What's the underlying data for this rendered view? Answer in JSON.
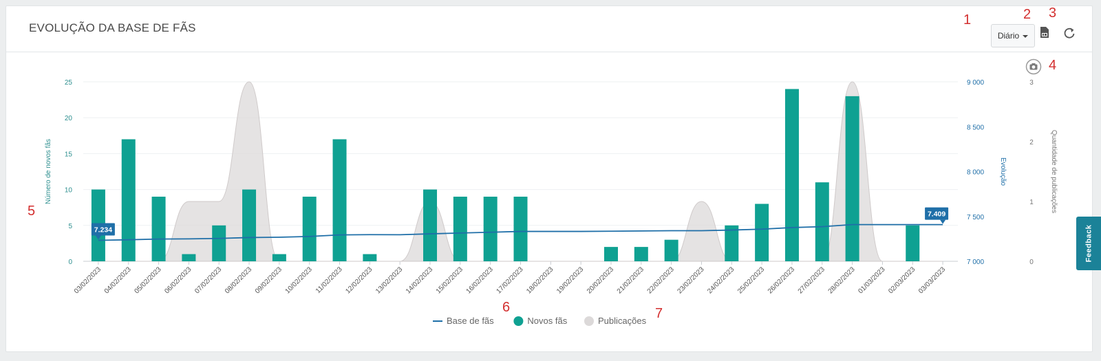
{
  "panel": {
    "title": "EVOLUÇÃO DA BASE DE FÃS",
    "period_label": "Diário",
    "feedback_label": "Feedback"
  },
  "annotations": [
    "1",
    "2",
    "3",
    "4",
    "5",
    "6",
    "7"
  ],
  "icons": {
    "export": "pdf-export-icon",
    "refresh": "refresh-icon",
    "screenshot": "camera-icon"
  },
  "colors": {
    "bars": "#0fa192",
    "line": "#1f6fa8",
    "area": "#dcd9d9",
    "annotation": "#d32f2f"
  },
  "chart_data": {
    "type": "bar",
    "categories": [
      "03/02/2023",
      "04/02/2023",
      "05/02/2023",
      "06/02/2023",
      "07/02/2023",
      "08/02/2023",
      "09/02/2023",
      "10/02/2023",
      "11/02/2023",
      "12/02/2023",
      "13/02/2023",
      "14/02/2023",
      "15/02/2023",
      "16/02/2023",
      "17/02/2023",
      "18/02/2023",
      "19/02/2023",
      "20/02/2023",
      "21/02/2023",
      "22/02/2023",
      "23/02/2023",
      "24/02/2023",
      "25/02/2023",
      "26/02/2023",
      "27/02/2023",
      "28/02/2023",
      "01/03/2023",
      "02/03/2023",
      "03/03/2023"
    ],
    "series": [
      {
        "name": "Novos fãs",
        "type": "bar",
        "axis": "left",
        "values": [
          10,
          17,
          9,
          1,
          5,
          10,
          1,
          9,
          17,
          1,
          0,
          10,
          9,
          9,
          9,
          0,
          0,
          2,
          2,
          3,
          0,
          5,
          8,
          24,
          11,
          23,
          0,
          5,
          0
        ]
      },
      {
        "name": "Base de fãs",
        "type": "line",
        "axis": "right1",
        "values": [
          7234,
          7240,
          7248,
          7250,
          7255,
          7265,
          7268,
          7277,
          7294,
          7297,
          7296,
          7306,
          7315,
          7324,
          7333,
          7333,
          7333,
          7335,
          7338,
          7341,
          7341,
          7348,
          7358,
          7376,
          7386,
          7409,
          7409,
          7409,
          7409
        ]
      },
      {
        "name": "Publicações",
        "type": "area",
        "axis": "right2",
        "values": [
          0,
          0,
          0,
          1,
          1,
          3,
          0,
          0,
          0,
          0,
          0,
          1,
          0,
          0,
          0,
          0,
          0,
          0,
          0,
          0,
          1,
          0,
          0,
          0,
          0,
          3,
          0,
          0,
          0
        ]
      }
    ],
    "axes": {
      "left": {
        "label": "Número de novos fãs",
        "ticks": [
          "0",
          "5",
          "10",
          "15",
          "20",
          "25"
        ],
        "range": [
          0,
          25
        ]
      },
      "right1": {
        "label": "Evolução",
        "ticks": [
          "7 000",
          "7 500",
          "8 000",
          "8 500",
          "9 000"
        ],
        "range": [
          7000,
          9000
        ]
      },
      "right2": {
        "label": "Quantidade de publicações",
        "ticks": [
          "0",
          "1",
          "2",
          "3"
        ],
        "range": [
          0,
          3
        ]
      }
    },
    "data_labels": [
      {
        "category": "03/02/2023",
        "series": "Base de fãs",
        "text": "7.234"
      },
      {
        "category": "03/03/2023",
        "series": "Base de fãs",
        "text": "7.409"
      }
    ],
    "legend": {
      "position": "bottom-center",
      "items": [
        "Base de fãs",
        "Novos fãs",
        "Publicações"
      ]
    },
    "grid": true
  }
}
